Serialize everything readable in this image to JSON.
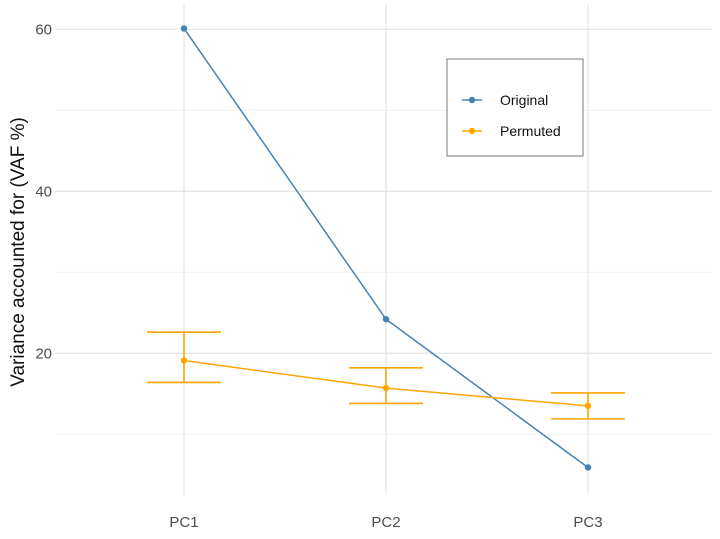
{
  "chart_data": {
    "type": "line",
    "categories": [
      "PC1",
      "PC2",
      "PC3"
    ],
    "xlabel": "",
    "ylabel": "Variance accounted for (VAF %)",
    "ylim": [
      2.5,
      63
    ],
    "yticks": [
      20,
      40,
      60
    ],
    "grid": true,
    "legend_position": "top-right",
    "series": [
      {
        "name": "Original",
        "color": "#4682b4",
        "values": [
          60.1,
          24.2,
          5.9
        ]
      },
      {
        "name": "Permuted",
        "color": "#ffa500",
        "values": [
          19.1,
          15.7,
          13.5
        ],
        "error_low": [
          16.4,
          13.8,
          11.9
        ],
        "error_high": [
          22.6,
          18.2,
          15.1
        ]
      }
    ]
  }
}
